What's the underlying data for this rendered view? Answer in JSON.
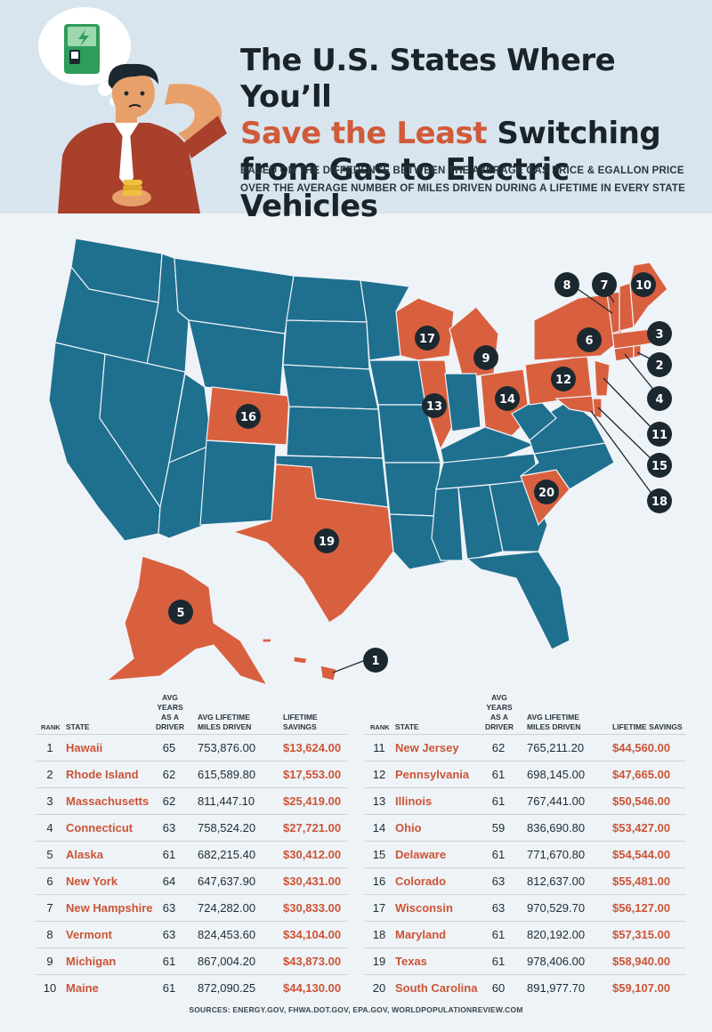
{
  "header": {
    "title_line1": "The U.S. States Where You’ll",
    "title_hl": "Save the Least",
    "title_line2_rest": " Switching",
    "title_line3": "from Gas to Electric Vehicles",
    "subtitle_line1": "BASED ON THE DIFFERENCE BETWEEN THE AVERAGE GAS PRICE & EGALLON PRICE",
    "subtitle_line2": "OVER THE AVERAGE NUMBER OF MILES DRIVEN DURING A LIFETIME IN EVERY STATE"
  },
  "colors": {
    "ranked": "#d9603f",
    "other": "#1f6f8f",
    "accent_text": "#cc5436",
    "badge": "#1c2830"
  },
  "map_badges": [
    "1",
    "2",
    "3",
    "4",
    "5",
    "6",
    "7",
    "8",
    "9",
    "10",
    "11",
    "12",
    "13",
    "14",
    "15",
    "16",
    "17",
    "18",
    "19",
    "20"
  ],
  "columns": {
    "rank": "RANK",
    "state": "STATE",
    "years_1": "AVG YEARS",
    "years_2": "AS A DRIVER",
    "miles_1": "AVG LIFETIME",
    "miles_2": "MILES DRIVEN",
    "savings": "LIFETIME SAVINGS"
  },
  "rows": [
    {
      "rank": "1",
      "state": "Hawaii",
      "years": "65",
      "miles": "753,876.00",
      "savings": "$13,624.00"
    },
    {
      "rank": "2",
      "state": "Rhode Island",
      "years": "62",
      "miles": "615,589.80",
      "savings": "$17,553.00"
    },
    {
      "rank": "3",
      "state": "Massachusetts",
      "years": "62",
      "miles": "811,447.10",
      "savings": "$25,419.00"
    },
    {
      "rank": "4",
      "state": "Connecticut",
      "years": "63",
      "miles": "758,524.20",
      "savings": "$27,721.00"
    },
    {
      "rank": "5",
      "state": "Alaska",
      "years": "61",
      "miles": "682,215.40",
      "savings": "$30,412.00"
    },
    {
      "rank": "6",
      "state": "New York",
      "years": "64",
      "miles": "647,637.90",
      "savings": "$30,431.00"
    },
    {
      "rank": "7",
      "state": "New Hampshire",
      "years": "63",
      "miles": "724,282.00",
      "savings": "$30,833.00"
    },
    {
      "rank": "8",
      "state": "Vermont",
      "years": "63",
      "miles": "824,453.60",
      "savings": "$34,104.00"
    },
    {
      "rank": "9",
      "state": "Michigan",
      "years": "61",
      "miles": "867,004.20",
      "savings": "$43,873.00"
    },
    {
      "rank": "10",
      "state": "Maine",
      "years": "61",
      "miles": "872,090.25",
      "savings": "$44,130.00"
    },
    {
      "rank": "11",
      "state": "New Jersey",
      "years": "62",
      "miles": "765,211.20",
      "savings": "$44,560.00"
    },
    {
      "rank": "12",
      "state": "Pennsylvania",
      "years": "61",
      "miles": "698,145.00",
      "savings": "$47,665.00"
    },
    {
      "rank": "13",
      "state": "Illinois",
      "years": "61",
      "miles": "767,441.00",
      "savings": "$50,546.00"
    },
    {
      "rank": "14",
      "state": "Ohio",
      "years": "59",
      "miles": "836,690.80",
      "savings": "$53,427.00"
    },
    {
      "rank": "15",
      "state": "Delaware",
      "years": "61",
      "miles": "771,670.80",
      "savings": "$54,544.00"
    },
    {
      "rank": "16",
      "state": "Colorado",
      "years": "63",
      "miles": "812,637.00",
      "savings": "$55,481.00"
    },
    {
      "rank": "17",
      "state": "Wisconsin",
      "years": "63",
      "miles": "970,529.70",
      "savings": "$56,127.00"
    },
    {
      "rank": "18",
      "state": "Maryland",
      "years": "61",
      "miles": "820,192.00",
      "savings": "$57,315.00"
    },
    {
      "rank": "19",
      "state": "Texas",
      "years": "61",
      "miles": "978,406.00",
      "savings": "$58,940.00"
    },
    {
      "rank": "20",
      "state": "South Carolina",
      "years": "60",
      "miles": "891,977.70",
      "savings": "$59,107.00"
    }
  ],
  "sources": "SOURCES: ENERGY.GOV, FHWA.DOT.GOV, EPA.GOV, WORLDPOPULATIONREVIEW.COM"
}
